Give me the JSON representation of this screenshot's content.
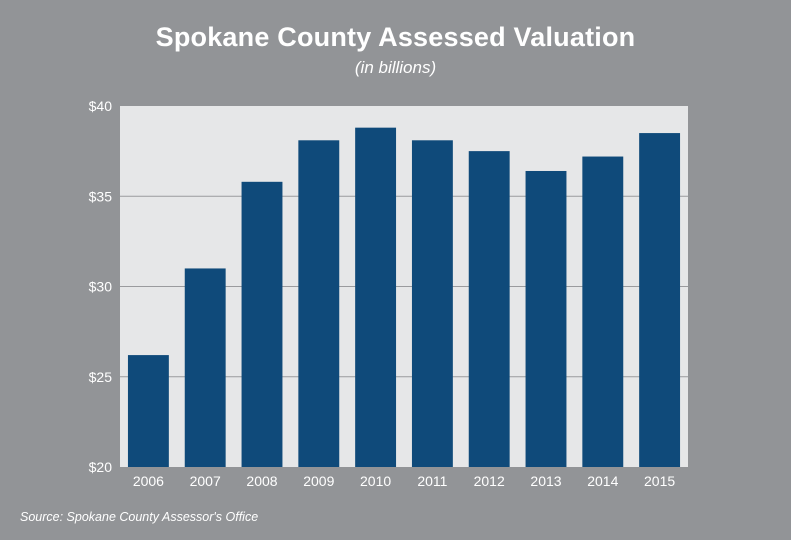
{
  "chart_data": {
    "type": "bar",
    "title": "Spokane County Assessed Valuation",
    "subtitle": "(in billions)",
    "categories": [
      "2006",
      "2007",
      "2008",
      "2009",
      "2010",
      "2011",
      "2012",
      "2013",
      "2014",
      "2015"
    ],
    "values": [
      26.2,
      31.0,
      35.8,
      38.1,
      38.8,
      38.1,
      37.5,
      36.4,
      37.2,
      38.5
    ],
    "ylim": [
      20,
      40
    ],
    "yticks": [
      20,
      25,
      30,
      35,
      40
    ],
    "ytick_labels": [
      "$20",
      "$25",
      "$30",
      "$35",
      "$40"
    ],
    "xlabel": "",
    "ylabel": "",
    "grid": true,
    "colors": {
      "bar": "#0f4a7a",
      "plot_background": "#e6e7e8",
      "page_background": "#929497",
      "gridline": "#9a9b9e"
    },
    "source": "Source: Spokane County Assessor's Office"
  }
}
